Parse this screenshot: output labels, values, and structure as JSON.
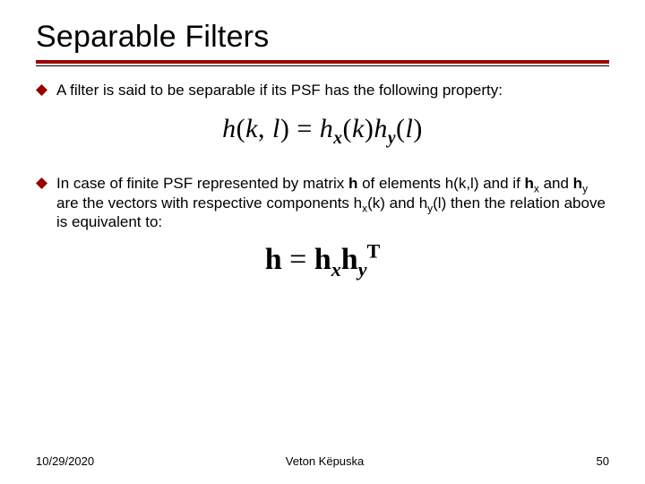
{
  "title": "Separable Filters",
  "rule": {
    "thick_color": "#990000",
    "thin_color": "#000000",
    "thick_height": 4,
    "thin_height": 1,
    "gap": 2
  },
  "bullets": [
    {
      "text_html": "A filter is said to be separable if its PSF has the following property:"
    },
    {
      "text_html": "In case of finite PSF represented by matrix <b>h</b> of elements h(k,l) and if <b>h</b><sub>x</sub> and <b>h</b><sub>y</sub> are the vectors with respective components h<sub>x</sub>(k) and h<sub>y</sub>(l) then the relation above is equivalent to:"
    }
  ],
  "bullet_marker": {
    "fill": "#990000",
    "size": 13
  },
  "equations": {
    "eq1": {
      "h": "h",
      "hx": "h",
      "hy": "h",
      "k": "k",
      "l": "l",
      "x": "x",
      "y": "y"
    },
    "eq2": {
      "h": "h",
      "x": "x",
      "y": "y",
      "T": "T"
    }
  },
  "footer": {
    "date": "10/29/2020",
    "author": "Veton Këpuska",
    "page": "50"
  }
}
